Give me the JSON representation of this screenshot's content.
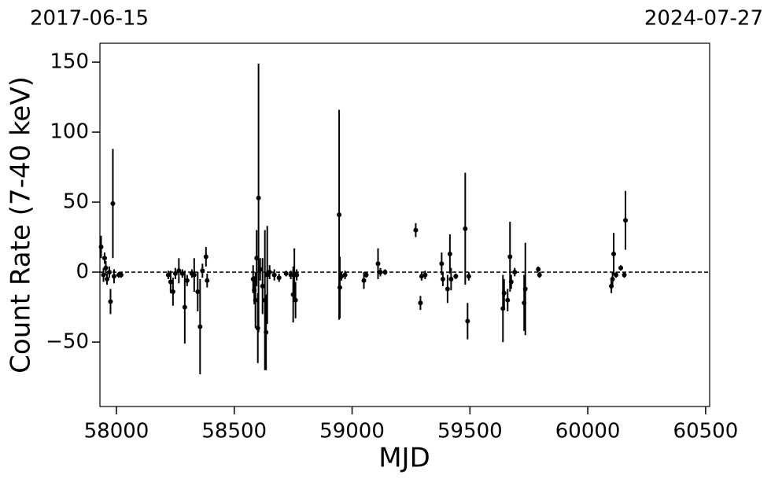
{
  "chart_data": {
    "type": "errorbar",
    "top_labels": [
      "2017-06-15",
      "2024-07-27"
    ],
    "x_label": "MJD",
    "y_label": "Count Rate (7-40 keV)",
    "color": "#000000",
    "hline": 0,
    "xlim": [
      57930,
      60517
    ],
    "ylim": [
      -96,
      163.5
    ],
    "xticks": [
      58000,
      58500,
      59000,
      59500,
      60000,
      60500
    ],
    "yticks": [
      {
        "value": -50,
        "label": "−50"
      },
      0,
      50,
      100,
      150
    ],
    "x": [
      57935,
      57945,
      57950,
      57955,
      57960,
      57970,
      57975,
      57985,
      57990,
      58010,
      58020,
      58220,
      58230,
      58240,
      58250,
      58265,
      58280,
      58290,
      58300,
      58320,
      58330,
      58345,
      58355,
      58365,
      58380,
      58385,
      58580,
      58585,
      58590,
      58595,
      58600,
      58603,
      58610,
      58620,
      58630,
      58635,
      58640,
      58650,
      58670,
      58690,
      58720,
      58740,
      58750,
      58755,
      58760,
      58765,
      58945,
      58948,
      58955,
      58970,
      59050,
      59060,
      59110,
      59120,
      59140,
      59270,
      59290,
      59295,
      59310,
      59380,
      59385,
      59405,
      59415,
      59420,
      59440,
      59480,
      59490,
      59495,
      59640,
      59645,
      59660,
      59670,
      59675,
      59690,
      59730,
      59735,
      59790,
      59795,
      60100,
      60105,
      60110,
      60120,
      60140,
      60155,
      60160
    ],
    "values": [
      18,
      -2,
      10,
      3,
      -5,
      0,
      -21,
      49,
      -3,
      -2,
      -2,
      -2,
      -7,
      -14,
      -1,
      1,
      -1,
      -25,
      -6,
      -1,
      -2,
      -14,
      -39,
      1,
      11,
      -6,
      -5,
      -13,
      -20,
      10,
      -40,
      53,
      2,
      -10,
      -20,
      -43,
      -2,
      0,
      -2,
      -4,
      -1,
      -2,
      -16,
      -2,
      -20,
      -2,
      41,
      -11,
      -3,
      -2,
      -6,
      -2,
      6,
      0,
      0,
      30,
      -22,
      -3,
      -2,
      6,
      -5,
      -12,
      13,
      -5,
      -3,
      31,
      -35,
      -3,
      -26,
      -15,
      -20,
      11,
      -7,
      0,
      -22,
      -12,
      2,
      -2,
      -10,
      -5,
      13,
      -2,
      3,
      -2,
      37
    ],
    "errors": [
      8,
      5,
      4,
      5,
      4,
      4,
      9,
      39,
      5,
      2,
      2,
      3,
      8,
      10,
      4,
      9,
      3,
      26,
      4,
      3,
      12,
      14,
      34,
      5,
      7,
      5,
      10,
      10,
      20,
      20,
      25,
      96,
      8,
      20,
      50,
      27,
      35,
      5,
      4,
      3,
      2,
      3,
      20,
      19,
      13,
      4,
      75,
      22,
      3,
      3,
      6,
      2,
      11,
      3,
      2,
      5,
      5,
      3,
      3,
      8,
      5,
      10,
      14,
      8,
      2,
      40,
      13,
      3,
      24,
      10,
      8,
      25,
      5,
      3,
      20,
      33,
      2,
      2,
      5,
      5,
      15,
      2,
      2,
      2,
      21
    ]
  }
}
